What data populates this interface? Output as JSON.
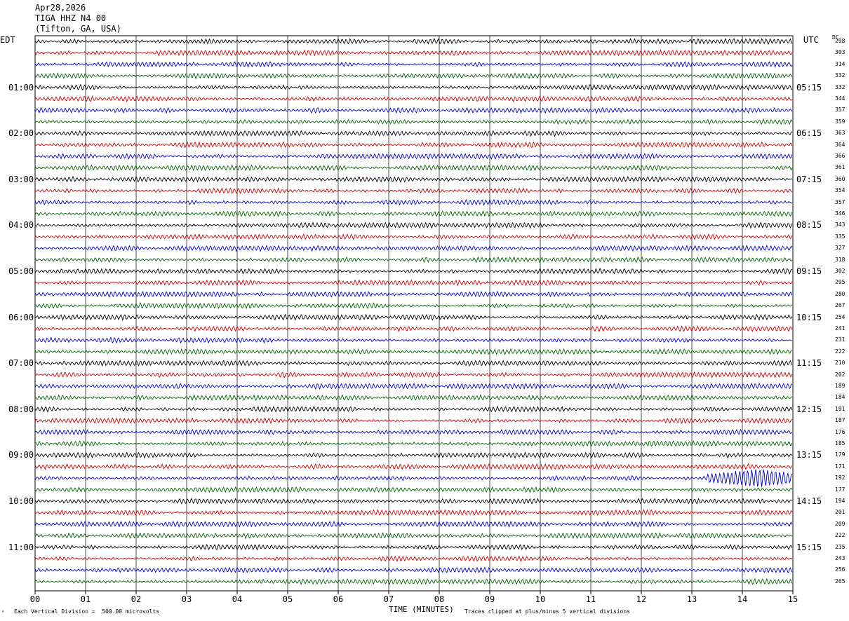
{
  "header": {
    "date": "Apr28,2026",
    "station": "TIGA HHZ N4 00",
    "location": "(Tifton, GA, USA)"
  },
  "left_zone": "EDT",
  "right_zone": "UTC",
  "dc_label": "DC",
  "footer": {
    "scale_note": "Each Vertical Division =  500.00 microvolts",
    "x_title": "TIME (MINUTES)",
    "clip_note": "Traces clipped at plus/minus 5 vertical divisions"
  },
  "colors": {
    "cycle": [
      "#000000",
      "#cc0000",
      "#0000cc",
      "#006400"
    ],
    "grid": "#000000"
  },
  "chart_data": {
    "type": "line",
    "title": "TIGA HHZ N4 00",
    "xlabel": "TIME (MINUTES)",
    "x_ticks": [
      "00",
      "01",
      "02",
      "03",
      "04",
      "05",
      "06",
      "07",
      "08",
      "09",
      "10",
      "11",
      "12",
      "13",
      "14",
      "15"
    ],
    "xlim": [
      0,
      15
    ],
    "left_hour_labels": [
      "01:00",
      "02:00",
      "03:00",
      "04:00",
      "05:00",
      "06:00",
      "07:00",
      "08:00",
      "09:00",
      "10:00",
      "11:00"
    ],
    "right_hour_labels": [
      "05:15",
      "06:15",
      "07:15",
      "08:15",
      "09:15",
      "10:15",
      "11:15",
      "12:15",
      "13:15",
      "14:15",
      "15:15"
    ],
    "dc_offsets": [
      298,
      303,
      314,
      332,
      332,
      344,
      357,
      359,
      363,
      364,
      366,
      361,
      360,
      354,
      357,
      346,
      343,
      335,
      327,
      318,
      302,
      295,
      280,
      267,
      254,
      241,
      231,
      222,
      210,
      202,
      189,
      184,
      191,
      187,
      176,
      185,
      179,
      171,
      192,
      177,
      194,
      201,
      209,
      222,
      235,
      243,
      256,
      265
    ],
    "traces_count": 48,
    "event": {
      "trace_index": 38,
      "start_minute": 13.3,
      "peak_minute": 14.2,
      "end_minute": 15
    }
  }
}
